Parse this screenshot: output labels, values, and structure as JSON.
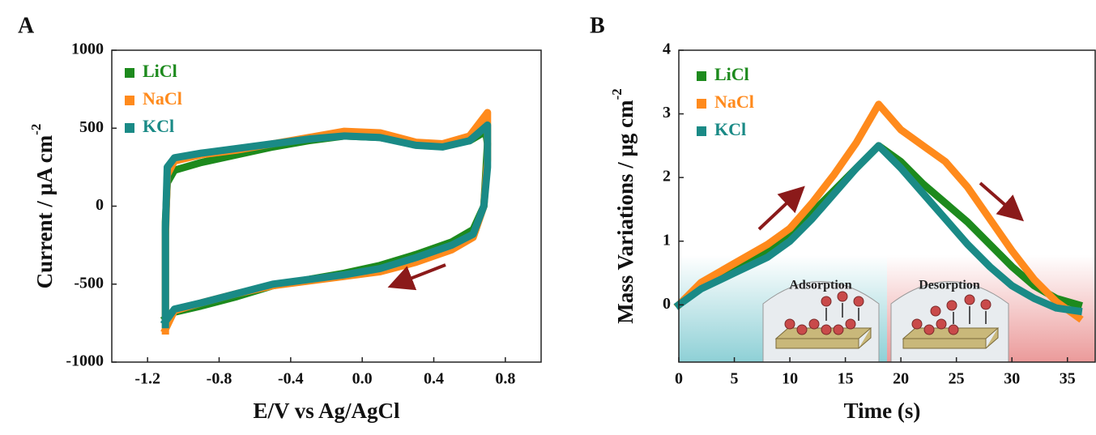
{
  "chart_data": [
    {
      "type": "line",
      "panel_label": "A",
      "x_label": "E/V vs Ag/AgCl",
      "y_label": "Current / μA cm",
      "y_label_superscript": "-2",
      "xlim": [
        -1.4,
        1.0
      ],
      "ylim": [
        -1000,
        1000
      ],
      "xticks": [
        -1.2,
        -0.8,
        -0.4,
        {
          "value": 0,
          "label": "0.0"
        },
        0.4,
        0.8
      ],
      "yticks": [
        -1000,
        -500,
        0,
        500,
        1000
      ],
      "series": [
        {
          "name": "LiCl",
          "color": "#1d8a1d",
          "x": [
            -1.1,
            -1.1,
            -1.09,
            -1.05,
            -0.9,
            -0.7,
            -0.5,
            -0.3,
            -0.1,
            0.1,
            0.3,
            0.45,
            0.6,
            0.69,
            0.7,
            0.68,
            0.62,
            0.5,
            0.3,
            0.1,
            -0.1,
            -0.3,
            -0.5,
            -0.7,
            -0.9,
            -1.05,
            -1.1
          ],
          "values": [
            -700,
            -100,
            150,
            230,
            280,
            330,
            380,
            420,
            450,
            440,
            400,
            390,
            420,
            480,
            400,
            0,
            -150,
            -230,
            -310,
            -380,
            -430,
            -470,
            -510,
            -580,
            -640,
            -680,
            -720
          ]
        },
        {
          "name": "NaCl",
          "color": "#ff8a1c",
          "x": [
            -1.1,
            -1.1,
            -1.09,
            -1.05,
            -0.9,
            -0.7,
            -0.5,
            -0.3,
            -0.1,
            0.1,
            0.3,
            0.45,
            0.6,
            0.7,
            0.7,
            0.68,
            0.62,
            0.5,
            0.3,
            0.1,
            -0.1,
            -0.3,
            -0.5,
            -0.7,
            -0.9,
            -1.05,
            -1.1
          ],
          "values": [
            -800,
            -200,
            200,
            290,
            330,
            360,
            400,
            440,
            480,
            470,
            410,
            400,
            450,
            600,
            300,
            0,
            -200,
            -280,
            -360,
            -420,
            -450,
            -480,
            -510,
            -560,
            -620,
            -670,
            -790
          ]
        },
        {
          "name": "KCl",
          "color": "#1a8a86",
          "x": [
            -1.1,
            -1.1,
            -1.09,
            -1.05,
            -0.9,
            -0.7,
            -0.5,
            -0.3,
            -0.1,
            0.1,
            0.3,
            0.45,
            0.6,
            0.7,
            0.7,
            0.68,
            0.62,
            0.5,
            0.3,
            0.1,
            -0.1,
            -0.3,
            -0.5,
            -0.7,
            -0.9,
            -1.05,
            -1.1
          ],
          "values": [
            -760,
            -150,
            250,
            310,
            340,
            370,
            400,
            430,
            450,
            440,
            390,
            380,
            420,
            520,
            250,
            0,
            -180,
            -250,
            -330,
            -400,
            -440,
            -470,
            -500,
            -560,
            -620,
            -660,
            -740
          ]
        }
      ]
    },
    {
      "type": "line",
      "panel_label": "B",
      "x_label": "Time (s)",
      "y_label": "Mass Variations / μg cm",
      "y_label_superscript": "-2",
      "annotations": [
        "Adsorption",
        "Desorption"
      ],
      "xlim": [
        0,
        37.5
      ],
      "ylim": [
        -0.9,
        4
      ],
      "xticks": [
        0,
        5,
        10,
        15,
        20,
        25,
        30,
        35
      ],
      "yticks": [
        0,
        1,
        2,
        3,
        4
      ],
      "x": [
        0,
        2,
        5,
        8,
        10,
        12,
        14,
        16,
        18,
        20,
        22,
        24,
        26,
        28,
        30,
        32,
        34,
        36
      ],
      "series": [
        {
          "name": "LiCl",
          "color": "#1d8a1d",
          "values": [
            0,
            0.3,
            0.55,
            0.85,
            1.1,
            1.45,
            1.8,
            2.15,
            2.5,
            2.25,
            1.9,
            1.6,
            1.3,
            0.95,
            0.6,
            0.3,
            0.1,
            0
          ]
        },
        {
          "name": "NaCl",
          "color": "#ff8a1c",
          "values": [
            0,
            0.35,
            0.65,
            0.95,
            1.2,
            1.6,
            2.05,
            2.55,
            3.15,
            2.75,
            2.5,
            2.25,
            1.85,
            1.35,
            0.85,
            0.4,
            0.05,
            -0.2
          ]
        },
        {
          "name": "KCl",
          "color": "#1a8a86",
          "values": [
            0,
            0.25,
            0.5,
            0.75,
            1.0,
            1.35,
            1.75,
            2.15,
            2.5,
            2.15,
            1.75,
            1.35,
            0.95,
            0.6,
            0.3,
            0.1,
            -0.05,
            -0.1
          ]
        }
      ]
    }
  ]
}
